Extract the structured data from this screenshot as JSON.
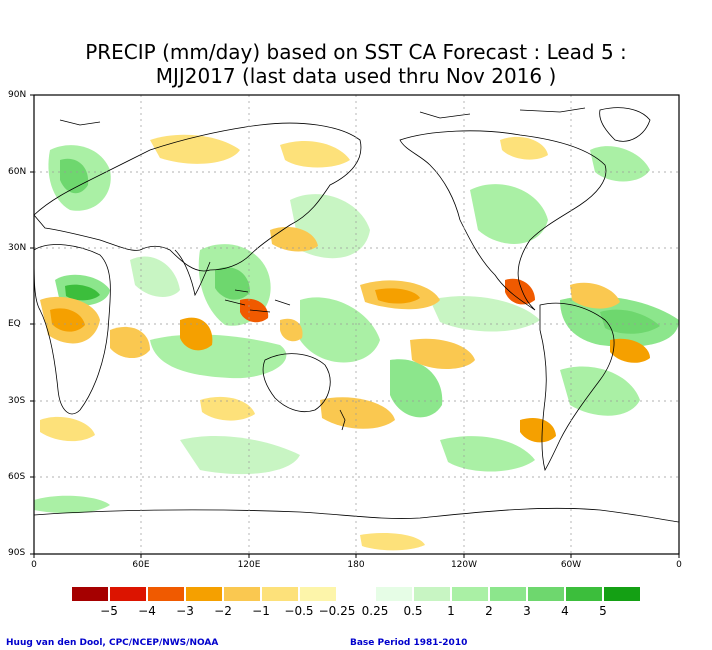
{
  "title": {
    "line1": "PRECIP (mm/day) based on SST CA Forecast : Lead 5 :",
    "line2": "MJJ2017 (last data used thru Nov 2016 )"
  },
  "axes": {
    "lat_labels": [
      "90N",
      "60N",
      "30N",
      "EQ",
      "30S",
      "60S",
      "90S"
    ],
    "lon_labels": [
      "0",
      "60E",
      "120E",
      "180",
      "120W",
      "60W",
      "0"
    ]
  },
  "colorbar": {
    "colors": [
      "#a50000",
      "#dc1400",
      "#f05a00",
      "#f5a000",
      "#fac850",
      "#fde17a",
      "#fdf5aa",
      "#ffffff",
      "#e6fde6",
      "#c8f5c3",
      "#aaf0a5",
      "#8ce68c",
      "#6ed76e",
      "#3cbe3c",
      "#14a014"
    ],
    "labels": [
      "−5",
      "−4",
      "−3",
      "−2",
      "−1",
      "−0.5",
      "−0.25",
      "0.25",
      "0.5",
      "1",
      "2",
      "3",
      "4",
      "5"
    ]
  },
  "credits": {
    "left": "Huug van den Dool, CPC/NCEP/NWS/NOAA",
    "right": "Base Period 1981-2010"
  }
}
